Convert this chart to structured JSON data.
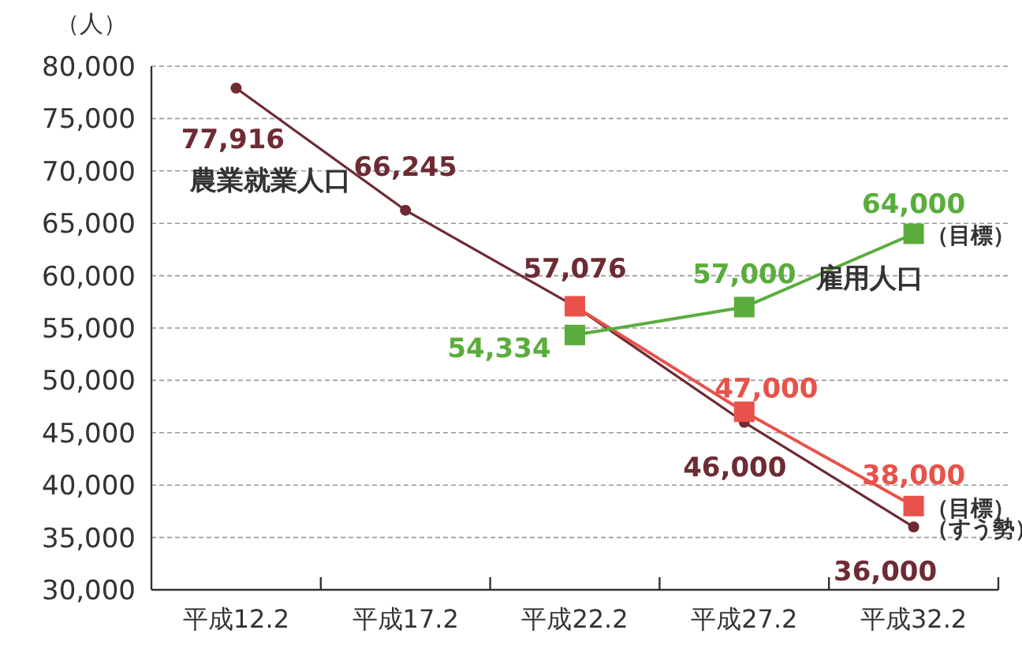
{
  "chart_data": {
    "type": "line",
    "ylabel": "（人）",
    "categories": [
      "平成12.2",
      "平成17.2",
      "平成22.2",
      "平成27.2",
      "平成32.2"
    ],
    "ylim": [
      30000,
      80000
    ],
    "yticks": [
      {
        "value": 30000,
        "label": "30,000"
      },
      {
        "value": 35000,
        "label": "35,000"
      },
      {
        "value": 40000,
        "label": "40,000"
      },
      {
        "value": 45000,
        "label": "45,000"
      },
      {
        "value": 50000,
        "label": "50,000"
      },
      {
        "value": 55000,
        "label": "55,000"
      },
      {
        "value": 60000,
        "label": "60,000"
      },
      {
        "value": 65000,
        "label": "65,000"
      },
      {
        "value": 70000,
        "label": "70,000"
      },
      {
        "value": 75000,
        "label": "75,000"
      },
      {
        "value": 80000,
        "label": "80,000"
      }
    ],
    "grid": "y",
    "legend": false,
    "series": [
      {
        "name": "農業就業人口",
        "color": "#6e2b34",
        "marker": "circle",
        "values": [
          77916,
          66245,
          57076,
          46000,
          36000
        ],
        "value_labels": [
          "77,916",
          "66,245",
          "57,076",
          "46,000",
          "36,000"
        ]
      },
      {
        "color": "#e8524a",
        "marker": "square",
        "values": [
          null,
          null,
          57076,
          47000,
          38000
        ],
        "value_labels": [
          null,
          null,
          null,
          "47,000",
          "38,000"
        ]
      },
      {
        "name": "雇用人口",
        "color": "#5aad3c",
        "marker": "square",
        "values": [
          null,
          null,
          54334,
          57000,
          64000
        ],
        "value_labels": [
          null,
          null,
          "54,334",
          "57,000",
          "64,000"
        ]
      }
    ],
    "annotations": [
      {
        "text": "（目標）",
        "x": "平成32.2",
        "y": 64000
      },
      {
        "text": "（目標）",
        "x": "平成32.2",
        "y": 38000
      },
      {
        "text": "（すう勢）",
        "x": "平成32.2",
        "y": 36000
      }
    ]
  }
}
